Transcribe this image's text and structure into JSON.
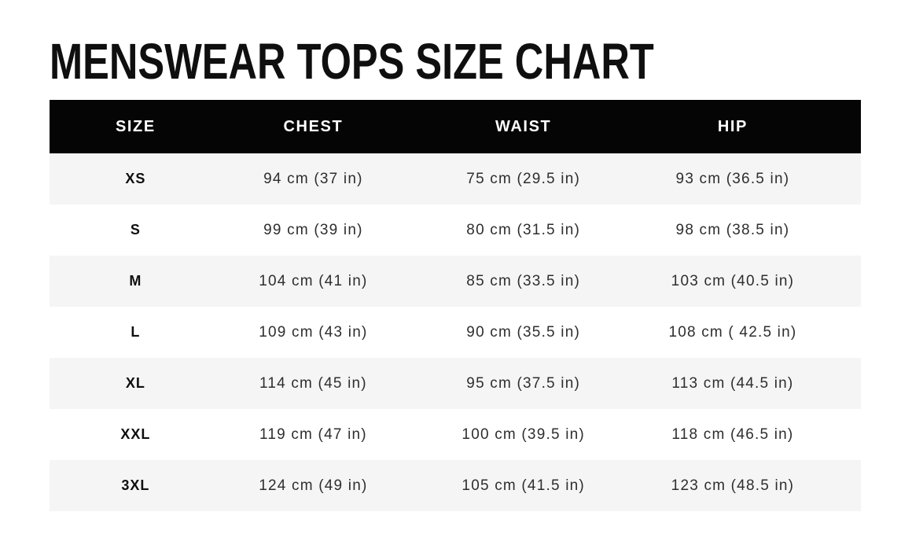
{
  "title": "MENSWEAR TOPS SIZE CHART",
  "colors": {
    "header_bg": "#050505",
    "header_text": "#ffffff",
    "stripe_bg": "#f5f5f5",
    "row_bg": "#ffffff",
    "title_color": "#0f0f0f",
    "value_text": "#2e2e2e"
  },
  "chart_data": {
    "type": "table",
    "title": "MENSWEAR TOPS SIZE CHART",
    "columns": [
      "SIZE",
      "CHEST",
      "WAIST",
      "HIP"
    ],
    "rows": [
      [
        "XS",
        "94 cm (37 in)",
        "75 cm (29.5 in)",
        "93 cm (36.5 in)"
      ],
      [
        "S",
        "99 cm (39 in)",
        "80 cm (31.5 in)",
        "98 cm (38.5 in)"
      ],
      [
        "M",
        "104 cm (41 in)",
        "85 cm (33.5 in)",
        "103 cm (40.5 in)"
      ],
      [
        "L",
        "109 cm (43 in)",
        "90 cm (35.5 in)",
        "108 cm ( 42.5 in)"
      ],
      [
        "XL",
        "114 cm (45 in)",
        "95 cm (37.5 in)",
        "113 cm (44.5 in)"
      ],
      [
        "XXL",
        "119 cm (47 in)",
        "100 cm (39.5 in)",
        "118 cm (46.5 in)"
      ],
      [
        "3XL",
        "124 cm (49 in)",
        "105 cm (41.5 in)",
        "123 cm (48.5 in)"
      ]
    ],
    "layout": {
      "striped_rows": [
        0,
        2,
        4,
        6
      ],
      "header_position": "top",
      "cell_alignment": "center"
    }
  }
}
